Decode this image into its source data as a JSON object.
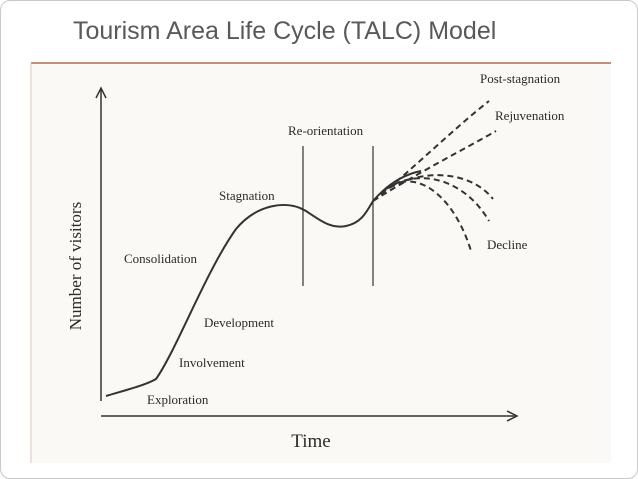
{
  "title": "Tourism Area Life Cycle (TALC) Model",
  "diagram": {
    "y_axis_label": "Number of visitors",
    "x_axis_label": "Time",
    "stages": [
      "Exploration",
      "Involvement",
      "Development",
      "Consolidation",
      "Stagnation"
    ],
    "reorientation": "Re-orientation",
    "outcomes": [
      "Post-stagnation",
      "Rejuvenation",
      "Decline"
    ]
  }
}
